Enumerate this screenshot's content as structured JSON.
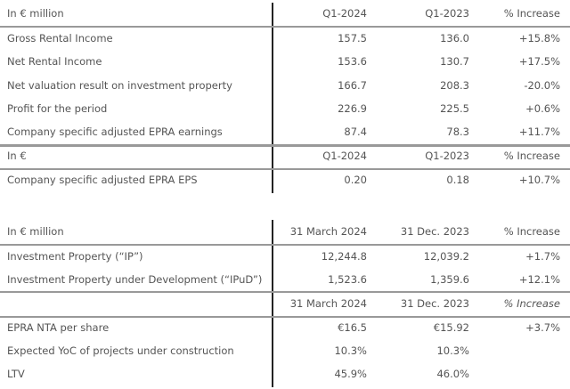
{
  "table1": {
    "header": [
      "In € million",
      "Q1-2024",
      "Q1-2023",
      "% Increase"
    ],
    "rows": [
      [
        "Gross Rental Income",
        "157.5",
        "136.0",
        "+15.8%"
      ],
      [
        "Net Rental Income",
        "153.6",
        "130.7",
        "+17.5%"
      ],
      [
        "Net valuation result on investment property",
        "166.7",
        "208.3",
        "-20.0%"
      ],
      [
        "Profit for the period",
        "226.9",
        "225.5",
        "+0.6%"
      ],
      [
        "Company specific adjusted EPRA earnings",
        "87.4",
        "78.3",
        "+11.7%"
      ]
    ],
    "header2": [
      "In €",
      "Q1-2024",
      "Q1-2023",
      "% Increase"
    ],
    "rows2": [
      [
        "Company specific adjusted EPRA EPS",
        "0.20",
        "0.18",
        "+10.7%"
      ]
    ]
  },
  "table2": {
    "header": [
      "In € million",
      "31 March 2024",
      "31 Dec. 2023",
      "% Increase"
    ],
    "rows": [
      [
        "Investment Property (“IP”)",
        "12,244.8",
        "12,039.2",
        "+1.7%"
      ],
      [
        "Investment Property under Development (“IPuD”)",
        "1,523.6",
        "1,359.6",
        "+12.1%"
      ]
    ],
    "header2": [
      "",
      "31 March 2024",
      "31 Dec. 2023",
      "% Increase"
    ],
    "rows2": [
      [
        "EPRA NTA per share",
        "€16.5",
        "€15.92",
        "+3.7%"
      ],
      [
        "Expected YoC of projects under construction",
        "10.3%",
        "10.3%",
        ""
      ],
      [
        "LTV",
        "45.9%",
        "46.0%",
        ""
      ]
    ]
  }
}
